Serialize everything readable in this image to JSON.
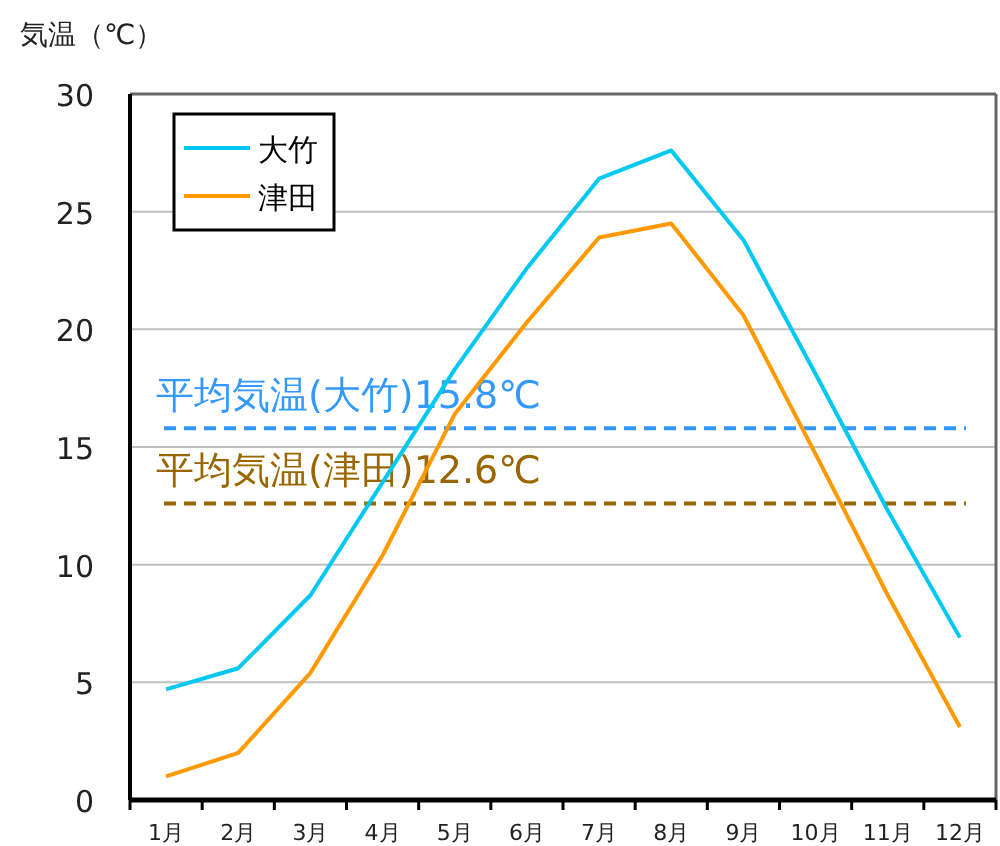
{
  "chart_data": {
    "type": "line",
    "ylabel": "気温（℃）",
    "categories": [
      "1月",
      "2月",
      "3月",
      "4月",
      "5月",
      "6月",
      "7月",
      "8月",
      "9月",
      "10月",
      "11月",
      "12月"
    ],
    "series": [
      {
        "name": "大竹",
        "color": "#00c8f0",
        "values": [
          4.7,
          5.6,
          8.7,
          13.5,
          18.3,
          22.6,
          26.4,
          27.6,
          23.8,
          18.1,
          12.3,
          6.9
        ]
      },
      {
        "name": "津田",
        "color": "#ff9900",
        "values": [
          1.0,
          2.0,
          5.4,
          10.4,
          16.4,
          20.3,
          23.9,
          24.5,
          20.6,
          14.7,
          8.7,
          3.1
        ]
      }
    ],
    "ylim": [
      0,
      30
    ],
    "yticks": [
      0,
      5,
      10,
      15,
      20,
      25,
      30
    ],
    "grid": "y",
    "legend": "top left",
    "marker": "none",
    "line_style": "solid",
    "ref_lines": [
      {
        "axis": "y",
        "value": 15.8,
        "label": "平均気温(大竹)15.8℃",
        "color": "#3399ff",
        "line_style": "dashed"
      },
      {
        "axis": "y",
        "value": 12.6,
        "label": "平均気温(津田)12.6℃",
        "color": "#996600",
        "line_style": "dashed"
      }
    ]
  }
}
